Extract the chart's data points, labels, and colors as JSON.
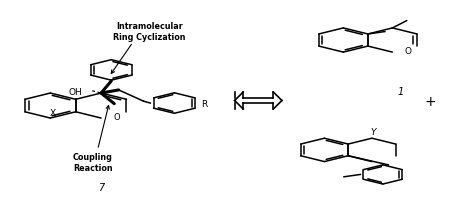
{
  "bg_color": "#ffffff",
  "text_color": "#000000",
  "figsize": [
    4.74,
    2.03
  ],
  "dpi": 100,
  "label_7": "7",
  "label_1": "1",
  "label_plus": "+",
  "label_OH": "OH",
  "label_X": "X",
  "label_O": "O",
  "label_R": "R",
  "label_Y": "Y",
  "label_intra": "Intramolecular\nRing Cyclization",
  "label_coupling": "Coupling\nReaction"
}
